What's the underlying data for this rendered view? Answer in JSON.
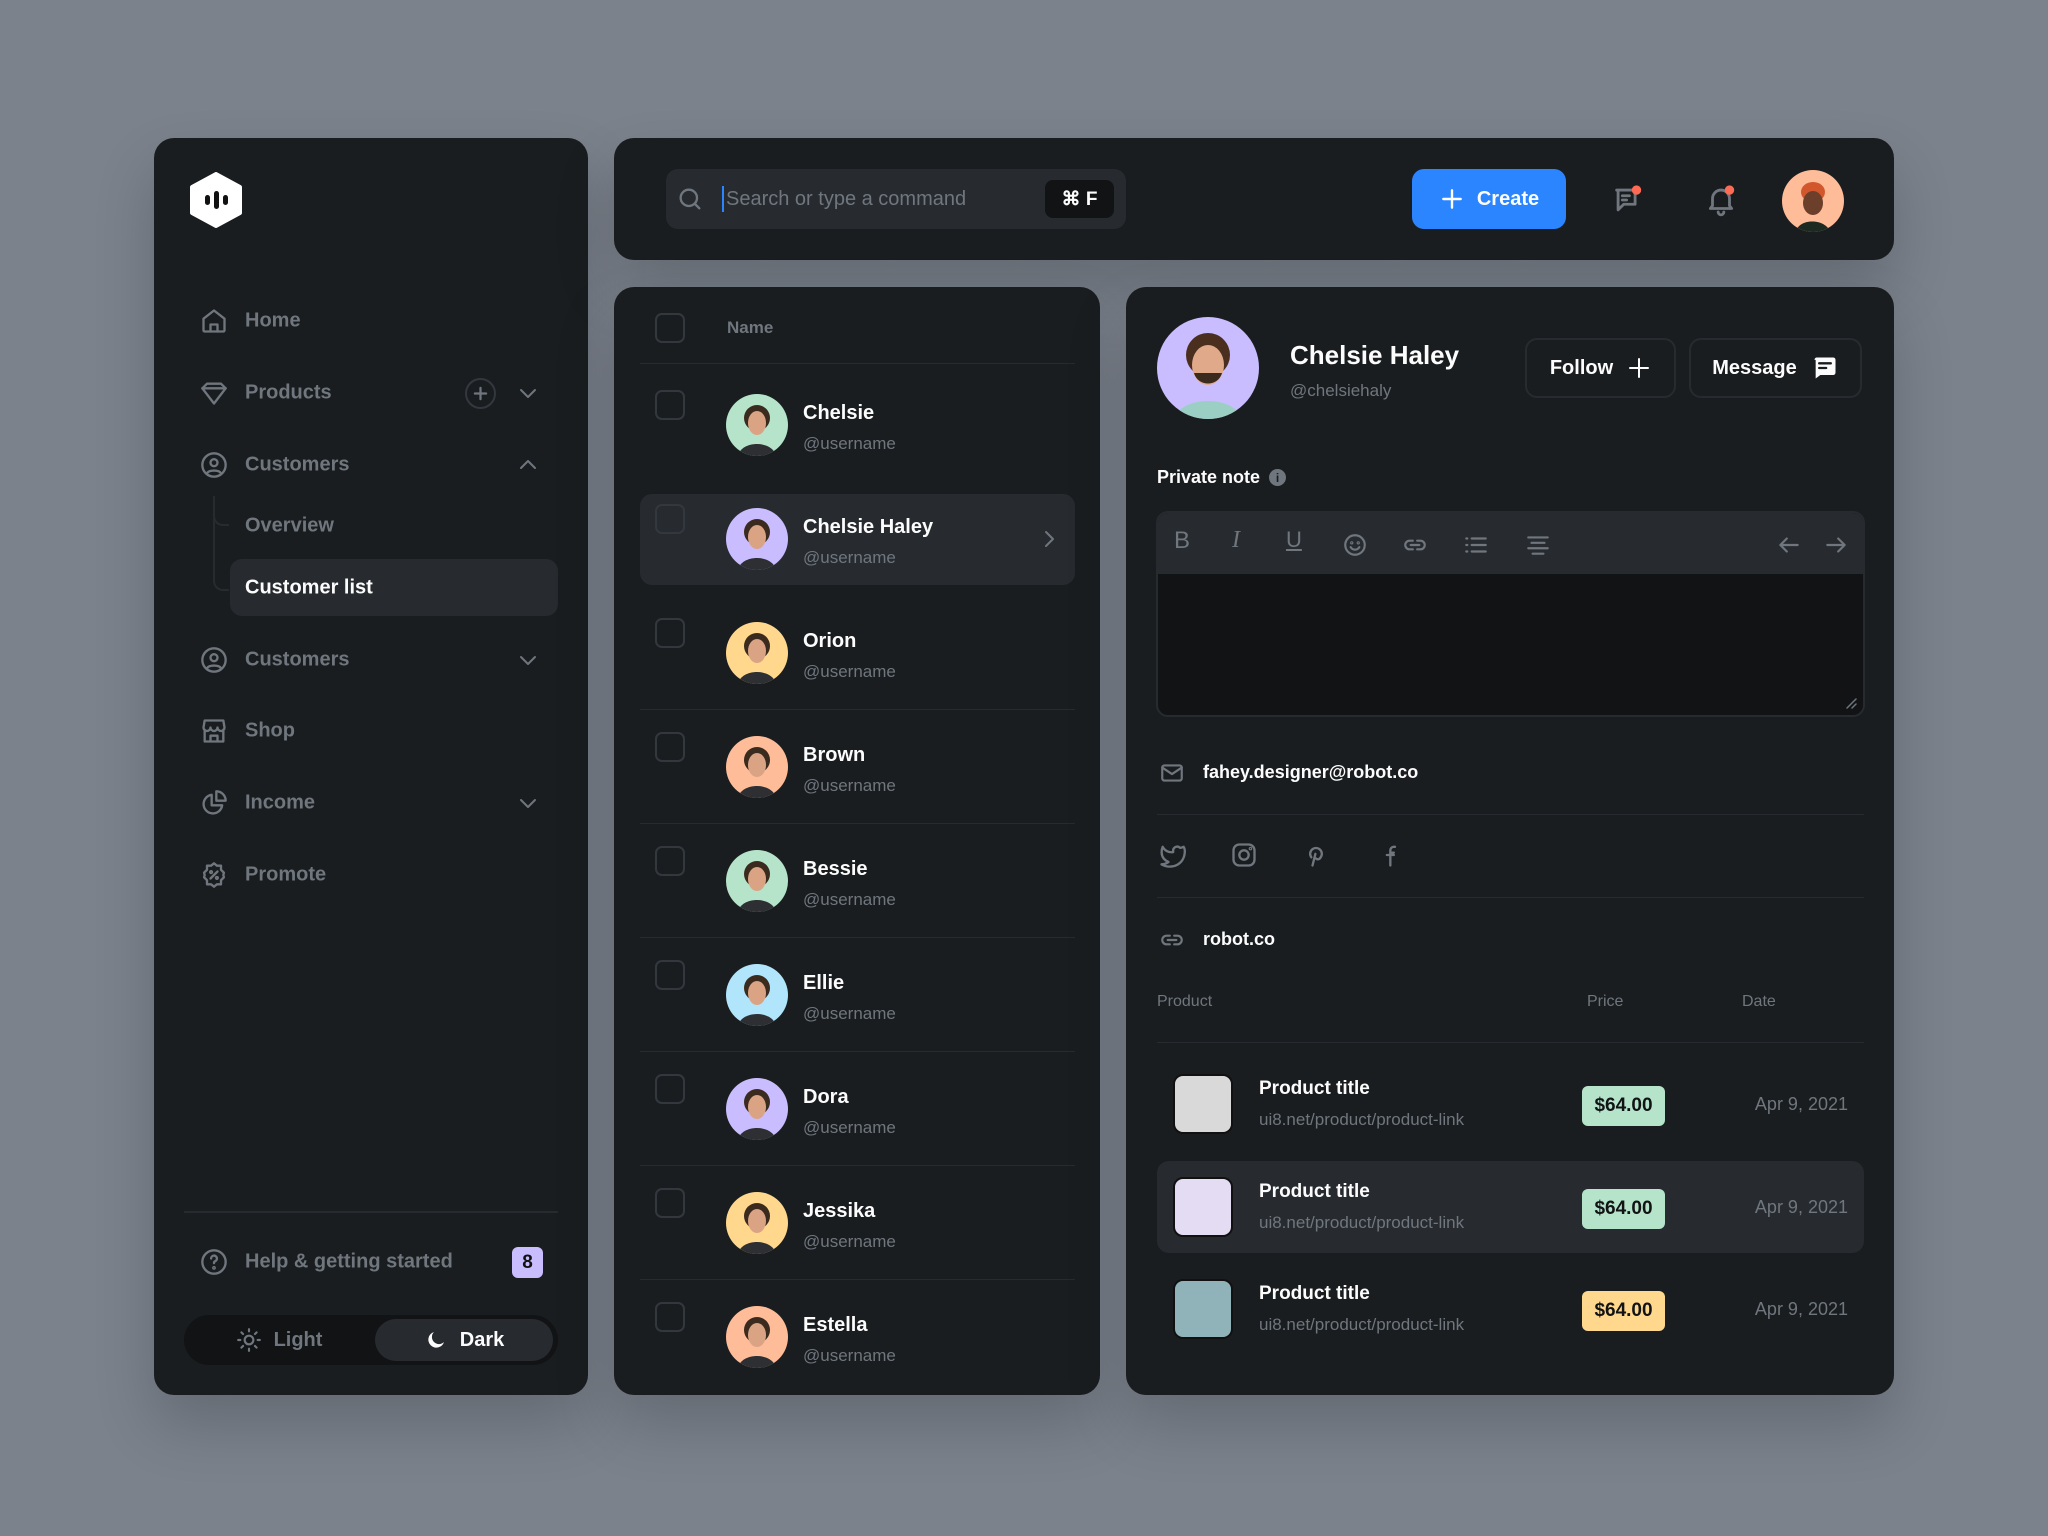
{
  "colors": {
    "background": "#7b828c",
    "panel": "#1a1d1f",
    "accent": "#2a85ff",
    "green": "#b5e4ca",
    "yellow": "#ffd88d",
    "purple": "#cabdff",
    "orange": "#ffbc99",
    "blue": "#b1e5fc",
    "notification": "#ff6a55"
  },
  "sidebar": {
    "logo": "logo-hexagon",
    "items": [
      {
        "label": "Home",
        "icon": "home-icon"
      },
      {
        "label": "Products",
        "icon": "diamond-icon"
      },
      {
        "label": "Customers",
        "icon": "user-circle-icon",
        "children": [
          {
            "label": "Overview"
          },
          {
            "label": "Customer list",
            "active": true
          }
        ]
      },
      {
        "label": "Customers",
        "icon": "user-circle-icon"
      },
      {
        "label": "Shop",
        "icon": "store-icon"
      },
      {
        "label": "Income",
        "icon": "pie-chart-icon"
      },
      {
        "label": "Promote",
        "icon": "discount-icon"
      }
    ],
    "help": {
      "label": "Help & getting started",
      "badge": "8"
    },
    "theme": {
      "light": "Light",
      "dark": "Dark",
      "selected": "Dark"
    }
  },
  "topbar": {
    "search_placeholder": "Search or type a command",
    "shortcut": "⌘ F",
    "create_label": "Create"
  },
  "list": {
    "header": "Name",
    "rows": [
      {
        "name": "Chelsie",
        "handle": "@username",
        "color": "#b5e4ca"
      },
      {
        "name": "Chelsie Haley",
        "handle": "@username",
        "color": "#cabdff",
        "selected": true
      },
      {
        "name": "Orion",
        "handle": "@username",
        "color": "#ffd88d"
      },
      {
        "name": "Brown",
        "handle": "@username",
        "color": "#ffbc99"
      },
      {
        "name": "Bessie",
        "handle": "@username",
        "color": "#b5e4ca"
      },
      {
        "name": "Ellie",
        "handle": "@username",
        "color": "#b1e5fc"
      },
      {
        "name": "Dora",
        "handle": "@username",
        "color": "#cabdff"
      },
      {
        "name": "Jessika",
        "handle": "@username",
        "color": "#ffd88d"
      },
      {
        "name": "Estella",
        "handle": "@username",
        "color": "#ffbc99"
      }
    ]
  },
  "detail": {
    "name": "Chelsie Haley",
    "handle": "@chelsiehaly",
    "follow_label": "Follow",
    "message_label": "Message",
    "private_note_label": "Private note",
    "note_value": "",
    "email": "fahey.designer@robot.co",
    "socials": [
      "twitter-icon",
      "instagram-icon",
      "pinterest-icon",
      "facebook-icon"
    ],
    "website": "robot.co",
    "table": {
      "headers": {
        "product": "Product",
        "price": "Price",
        "date": "Date"
      },
      "rows": [
        {
          "title": "Product title",
          "link": "ui8.net/product/product-link",
          "price": "$64.00",
          "price_color": "#b5e4ca",
          "date": "Apr 9, 2021",
          "thumb_color": "#d9d9d9"
        },
        {
          "title": "Product title",
          "link": "ui8.net/product/product-link",
          "price": "$64.00",
          "price_color": "#b5e4ca",
          "date": "Apr 9, 2021",
          "thumb_color": "#e4dcf2",
          "highlighted": true
        },
        {
          "title": "Product title",
          "link": "ui8.net/product/product-link",
          "price": "$64.00",
          "price_color": "#ffd88d",
          "date": "Apr 9, 2021",
          "thumb_color": "#8fb3b8"
        }
      ]
    }
  }
}
